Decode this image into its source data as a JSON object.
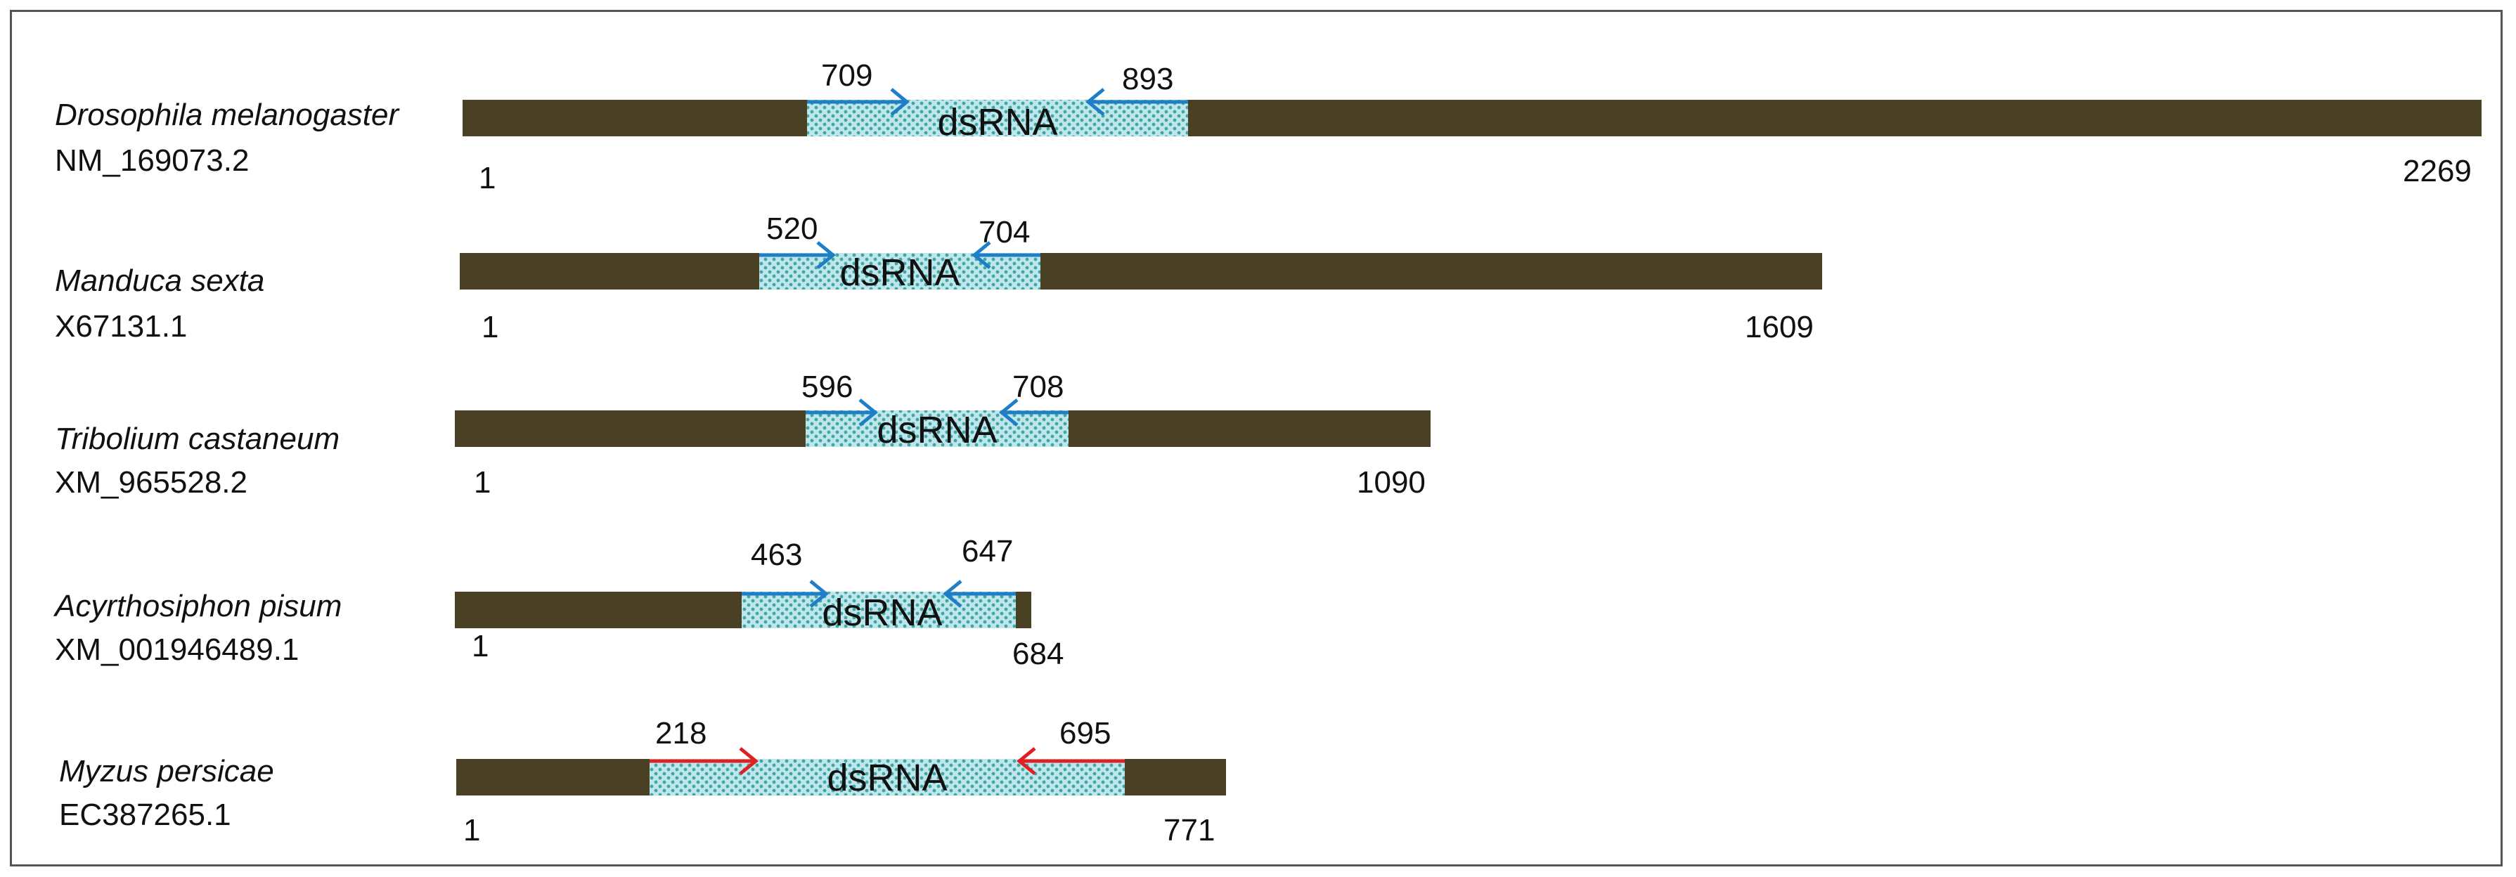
{
  "diagram": {
    "rows": [
      {
        "species": "Drosophila melanogaster",
        "accession": "NM_169073.2",
        "start_label": "1",
        "end_label": "2269",
        "primer_left": "709",
        "primer_right": "893",
        "region_label": "dsRNA",
        "arrow_color": "#1E7FC8"
      },
      {
        "species": "Manduca sexta",
        "accession": "X67131.1",
        "start_label": "1",
        "end_label": "1609",
        "primer_left": "520",
        "primer_right": "704",
        "region_label": "dsRNA",
        "arrow_color": "#1E7FC8"
      },
      {
        "species": "Tribolium castaneum",
        "accession": "XM_965528.2",
        "start_label": "1",
        "end_label": "1090",
        "primer_left": "596",
        "primer_right": "708",
        "region_label": "dsRNA",
        "arrow_color": "#1E7FC8"
      },
      {
        "species": "Acyrthosiphon pisum",
        "accession": "XM_001946489.1",
        "start_label": "1",
        "end_label": "684",
        "primer_left": "463",
        "primer_right": "647",
        "region_label": "dsRNA",
        "arrow_color": "#1E7FC8"
      },
      {
        "species": "Myzus persicae",
        "accession": "EC387265.1",
        "start_label": "1",
        "end_label": "771",
        "primer_left": "218",
        "primer_right": "695",
        "region_label": "dsRNA",
        "arrow_color": "#E02020"
      }
    ],
    "colors": {
      "gene_bar": "#4A4124",
      "dsrna_fill": "#BFE6EC",
      "dsrna_dots": "#3FA7A0"
    }
  }
}
